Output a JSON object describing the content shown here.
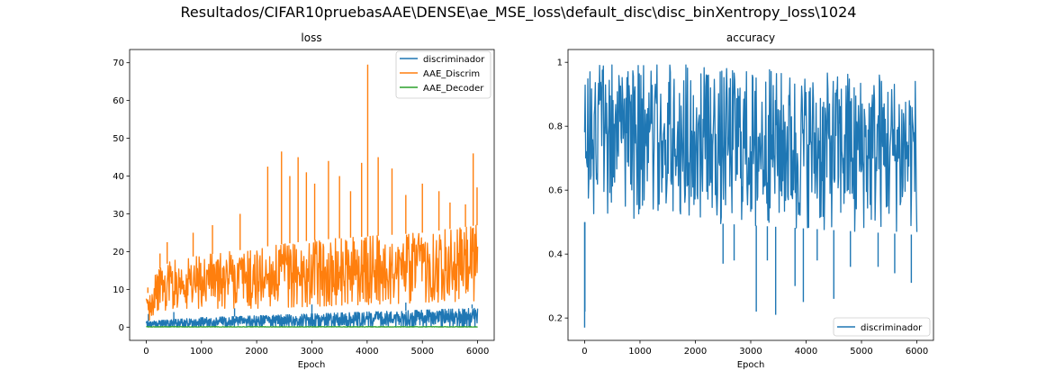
{
  "figure": {
    "suptitle": "Resultados/CIFAR10pruebasAAE\\DENSE\\ae_MSE_loss\\default_disc\\disc_binXentropy_loss\\1024"
  },
  "chart_data": [
    {
      "type": "line",
      "title": "loss",
      "xlabel": "Epoch",
      "ylabel": "",
      "xlim": [
        -300,
        6300
      ],
      "ylim": [
        -3.5,
        73.5
      ],
      "xticks": [
        0,
        1000,
        2000,
        3000,
        4000,
        5000,
        6000
      ],
      "yticks": [
        0,
        10,
        20,
        30,
        40,
        50,
        60,
        70
      ],
      "grid": false,
      "legend_position": "upper right",
      "series": [
        {
          "name": "discriminador",
          "color": "#1f77b4",
          "band": {
            "x": [
              0,
              1000,
              2000,
              3000,
              4000,
              5000,
              6000
            ],
            "low": [
              0.2,
              0.2,
              0.2,
              0.2,
              0.2,
              0.2,
              0.2
            ],
            "high": [
              1.5,
              2.5,
              3.0,
              3.5,
              4.0,
              4.5,
              5.0
            ]
          },
          "spikes": [
            {
              "x": 40,
              "y": 3.5
            },
            {
              "x": 500,
              "y": 4.0
            },
            {
              "x": 1600,
              "y": 5.0
            },
            {
              "x": 3000,
              "y": 6.0
            },
            {
              "x": 4700,
              "y": 6.5
            },
            {
              "x": 5900,
              "y": 6.0
            }
          ]
        },
        {
          "name": "AAE_Discrim",
          "color": "#ff7f0e",
          "band": {
            "x": [
              0,
              200,
              500,
              1000,
              2000,
              3000,
              4000,
              5000,
              6000
            ],
            "low": [
              1,
              4,
              5,
              5,
              5,
              5.5,
              6,
              6.5,
              7
            ],
            "high": [
              8,
              15,
              18,
              19,
              21,
              23,
              24,
              25,
              27
            ]
          },
          "spikes": [
            {
              "x": 30,
              "y": 10.5
            },
            {
              "x": 250,
              "y": 19.5
            },
            {
              "x": 380,
              "y": 22.5
            },
            {
              "x": 850,
              "y": 25.0
            },
            {
              "x": 1200,
              "y": 27.0
            },
            {
              "x": 1700,
              "y": 30.0
            },
            {
              "x": 2200,
              "y": 42.5
            },
            {
              "x": 2450,
              "y": 46.5
            },
            {
              "x": 2600,
              "y": 40.0
            },
            {
              "x": 2750,
              "y": 45.0
            },
            {
              "x": 2900,
              "y": 41.0
            },
            {
              "x": 3050,
              "y": 38.0
            },
            {
              "x": 3300,
              "y": 44.0
            },
            {
              "x": 3500,
              "y": 40.0
            },
            {
              "x": 3700,
              "y": 36.0
            },
            {
              "x": 3900,
              "y": 43.5
            },
            {
              "x": 4010,
              "y": 69.5
            },
            {
              "x": 4200,
              "y": 45.0
            },
            {
              "x": 4450,
              "y": 42.0
            },
            {
              "x": 4700,
              "y": 35.0
            },
            {
              "x": 5000,
              "y": 38.0
            },
            {
              "x": 5300,
              "y": 36.0
            },
            {
              "x": 5500,
              "y": 33.0
            },
            {
              "x": 5780,
              "y": 32.5
            },
            {
              "x": 5920,
              "y": 46.0
            },
            {
              "x": 5990,
              "y": 37.0
            }
          ]
        },
        {
          "name": "AAE_Decoder",
          "color": "#2ca02c",
          "band": {
            "x": [
              0,
              6000
            ],
            "low": [
              0.05,
              0.05
            ],
            "high": [
              0.12,
              0.12
            ]
          },
          "spikes": []
        }
      ]
    },
    {
      "type": "line",
      "title": "accuracy",
      "xlabel": "Epoch",
      "ylabel": "",
      "xlim": [
        -300,
        6300
      ],
      "ylim": [
        0.13,
        1.04
      ],
      "xticks": [
        0,
        1000,
        2000,
        3000,
        4000,
        5000,
        6000
      ],
      "yticks": [
        0.2,
        0.4,
        0.6,
        0.8,
        1.0
      ],
      "grid": false,
      "legend_position": "lower right",
      "series": [
        {
          "name": "discriminador",
          "color": "#1f77b4",
          "band": {
            "x": [
              0,
              30,
              100,
              500,
              1000,
              2000,
              3000,
              4000,
              5000,
              6000
            ],
            "low": [
              0.5,
              0.5,
              0.52,
              0.52,
              0.51,
              0.5,
              0.49,
              0.48,
              0.47,
              0.46
            ],
            "high": [
              1.0,
              1.0,
              1.0,
              1.0,
              1.0,
              0.99,
              0.98,
              0.97,
              0.96,
              0.96
            ]
          },
          "spikes": [
            {
              "x": 0,
              "y": 0.17
            },
            {
              "x": 5,
              "y": 0.22
            },
            {
              "x": 2500,
              "y": 0.37
            },
            {
              "x": 2700,
              "y": 0.38
            },
            {
              "x": 3100,
              "y": 0.22
            },
            {
              "x": 3300,
              "y": 0.38
            },
            {
              "x": 3450,
              "y": 0.21
            },
            {
              "x": 3800,
              "y": 0.3
            },
            {
              "x": 3950,
              "y": 0.25
            },
            {
              "x": 4200,
              "y": 0.38
            },
            {
              "x": 4500,
              "y": 0.26
            },
            {
              "x": 4800,
              "y": 0.36
            },
            {
              "x": 5300,
              "y": 0.36
            },
            {
              "x": 5600,
              "y": 0.34
            },
            {
              "x": 5900,
              "y": 0.31
            }
          ]
        }
      ]
    }
  ]
}
